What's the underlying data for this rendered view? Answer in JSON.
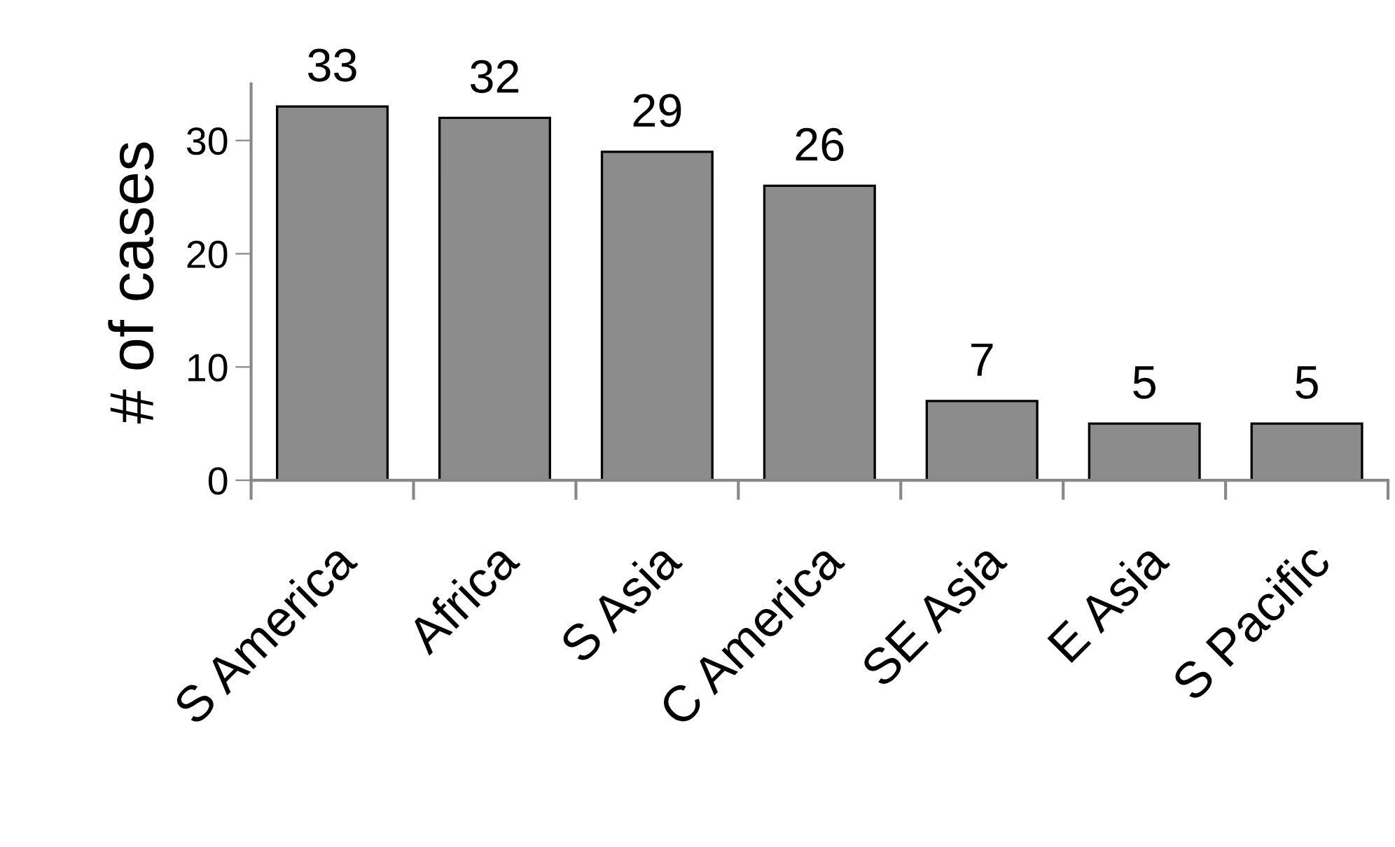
{
  "chart_data": {
    "type": "bar",
    "ylabel": "# of cases",
    "categories": [
      "S America",
      "Africa",
      "S Asia",
      "C America",
      "SE Asia",
      "E Asia",
      "S Pacific"
    ],
    "values": [
      33,
      32,
      29,
      26,
      7,
      5,
      5
    ],
    "color": "#8c8c8c",
    "ylim": [
      0,
      35
    ],
    "yticks": [
      0,
      10,
      20,
      30
    ],
    "grid": false,
    "data_labels": true
  }
}
